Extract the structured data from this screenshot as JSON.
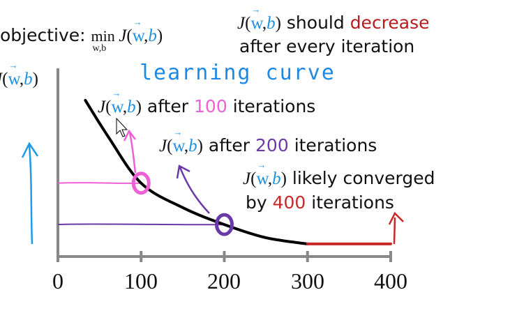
{
  "header": {
    "objective_label": "objective:",
    "objective_min": "min",
    "objective_sub": "w,b",
    "note_line1_prefix": "should",
    "note_line1_emph": "decrease",
    "note_line2": "after every iteration",
    "emph_color": "#b71c1c"
  },
  "math": {
    "J": "J",
    "open": "(",
    "w": "w",
    "comma": ",",
    "b": "b",
    "close": ")"
  },
  "handwritten_title": "learning curve",
  "annotations": {
    "a100": {
      "prefix": "after",
      "num": "100",
      "suffix": "iterations",
      "color": "#ef5fd6"
    },
    "a200": {
      "prefix": "after",
      "num": "200",
      "suffix": "iterations",
      "color": "#6a3aa8"
    },
    "a400": {
      "line1": "likely converged",
      "by": "by",
      "num": "400",
      "suffix": "iterations",
      "color": "#c62828"
    }
  },
  "chart_data": {
    "type": "line",
    "title": "learning curve",
    "xlabel": "",
    "ylabel": "J(w,b)",
    "xlim": [
      0,
      400
    ],
    "x_ticks": [
      "0",
      "100",
      "200",
      "300",
      "400"
    ],
    "grid": false,
    "y_ticks": "none",
    "series": [
      {
        "x": [
          33,
          60,
          100,
          150,
          200,
          250,
          300
        ],
        "y": [
          0.83,
          0.64,
          0.39,
          0.26,
          0.17,
          0.1,
          0.067
        ],
        "color": "#000000"
      },
      {
        "x": [
          300,
          400
        ],
        "y": [
          0.067,
          0.067
        ],
        "color": "#c62828"
      }
    ],
    "markers": [
      {
        "x": 100,
        "y": 0.39,
        "color": "#ef5fd6"
      },
      {
        "x": 200,
        "y": 0.17,
        "color": "#6a3aa8"
      }
    ]
  }
}
